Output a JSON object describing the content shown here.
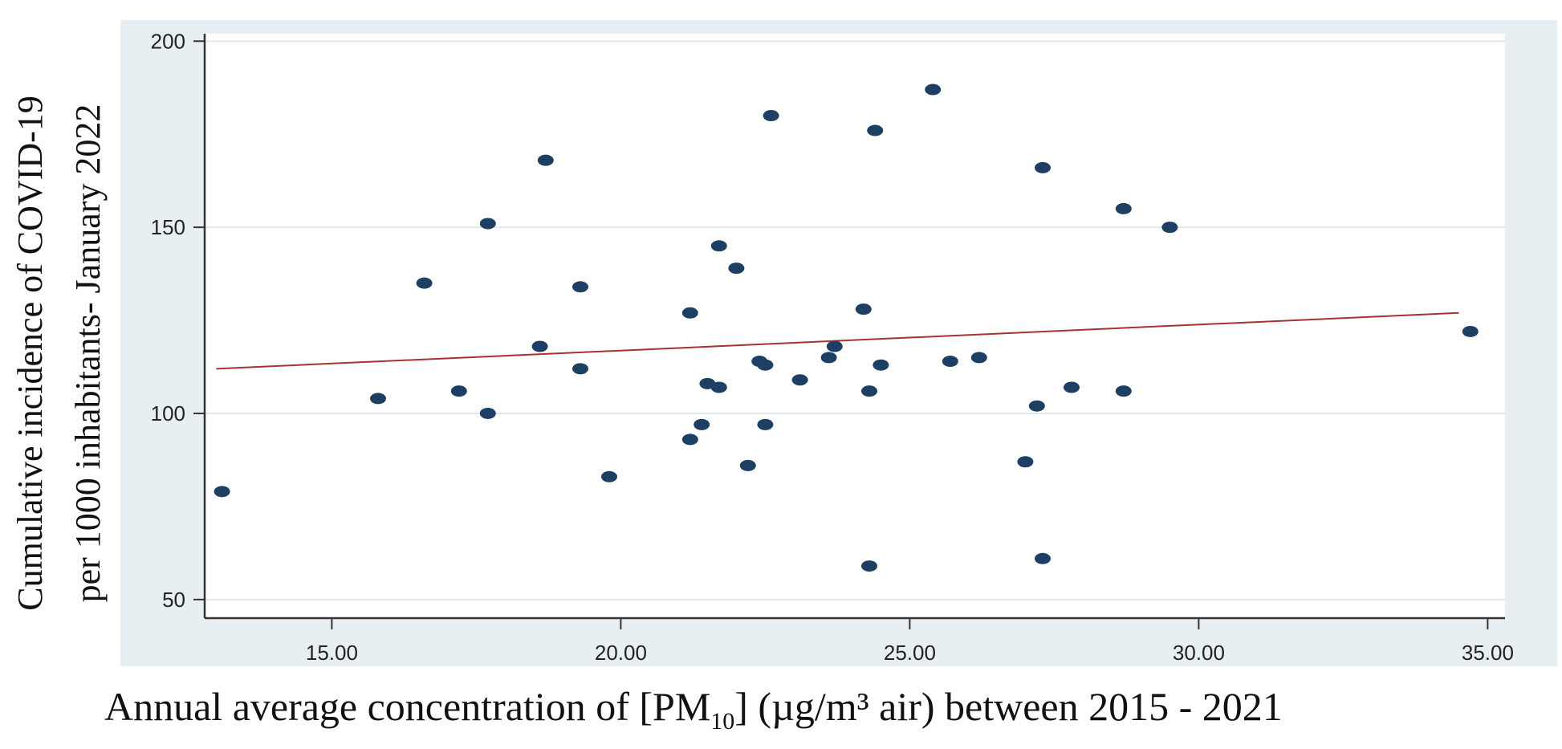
{
  "chart_data": {
    "type": "scatter",
    "xlabel": {
      "before": "Annual average concentration of [PM",
      "sub": "10",
      "after": "]  (µg/m³ air) between 2015 - 2021"
    },
    "ylabel": [
      "Cumulative incidence of COVID-19",
      "per 1000 inhabitants-  January 2022"
    ],
    "xlim": [
      12.8,
      35.3
    ],
    "ylim": [
      45,
      202
    ],
    "xticks": [
      15,
      20,
      25,
      30,
      35
    ],
    "xtick_labels": [
      "15.00",
      "20.00",
      "25.00",
      "30.00",
      "35.00"
    ],
    "yticks": [
      50,
      100,
      150,
      200
    ],
    "ytick_labels": [
      "50",
      "100",
      "150",
      "200"
    ],
    "grid": true,
    "points": [
      [
        13.1,
        79
      ],
      [
        15.8,
        104
      ],
      [
        16.6,
        135
      ],
      [
        17.2,
        106
      ],
      [
        17.7,
        151
      ],
      [
        17.7,
        100
      ],
      [
        18.6,
        118
      ],
      [
        18.7,
        168
      ],
      [
        19.3,
        134
      ],
      [
        19.3,
        112
      ],
      [
        19.8,
        83
      ],
      [
        21.2,
        127
      ],
      [
        21.2,
        93
      ],
      [
        21.4,
        97
      ],
      [
        21.5,
        108
      ],
      [
        21.7,
        107
      ],
      [
        21.7,
        145
      ],
      [
        22.0,
        139
      ],
      [
        22.2,
        86
      ],
      [
        22.4,
        114
      ],
      [
        22.5,
        113
      ],
      [
        22.5,
        97
      ],
      [
        22.6,
        180
      ],
      [
        23.1,
        109
      ],
      [
        23.6,
        115
      ],
      [
        23.7,
        118
      ],
      [
        24.2,
        128
      ],
      [
        24.3,
        106
      ],
      [
        24.3,
        59
      ],
      [
        24.4,
        176
      ],
      [
        24.5,
        113
      ],
      [
        25.4,
        187
      ],
      [
        25.7,
        114
      ],
      [
        26.2,
        115
      ],
      [
        27.0,
        87
      ],
      [
        27.2,
        102
      ],
      [
        27.3,
        166
      ],
      [
        27.3,
        61
      ],
      [
        27.8,
        107
      ],
      [
        28.7,
        155
      ],
      [
        28.7,
        106
      ],
      [
        29.5,
        150
      ],
      [
        34.7,
        122
      ]
    ],
    "fit_line": {
      "x": [
        13.0,
        34.5
      ],
      "y": [
        112,
        127
      ]
    },
    "colors": {
      "point": "#1c3f63",
      "fit_line": "#a83232",
      "plot_bg": "#ffffff",
      "frame_bg": "#e8eff2",
      "grid": "#dde8ee"
    }
  }
}
